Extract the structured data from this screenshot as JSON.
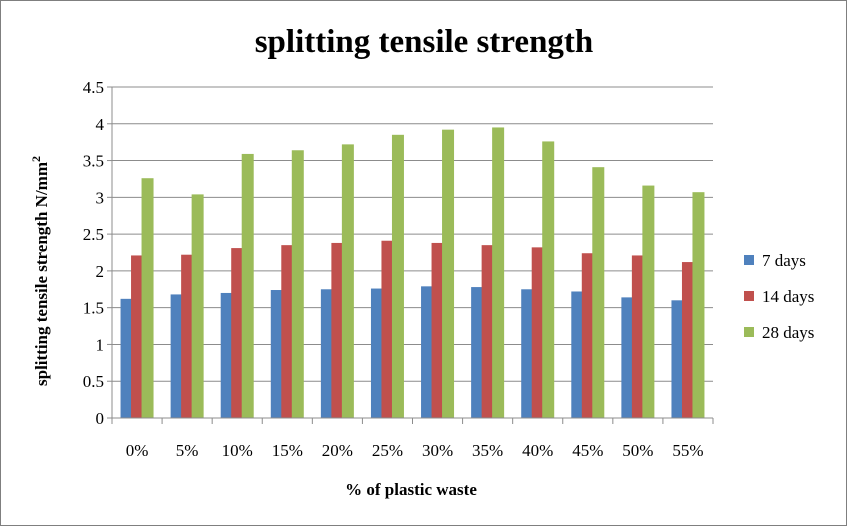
{
  "chart_data": {
    "type": "bar",
    "title": "splitting tensile strength",
    "xlabel": "% of plastic waste",
    "ylabel": "splitting tensile strength N/mm",
    "ylabel_sup": "2",
    "categories": [
      "0%",
      "5%",
      "10%",
      "15%",
      "20%",
      "25%",
      "30%",
      "35%",
      "40%",
      "45%",
      "50%",
      "55%"
    ],
    "ylim": [
      0,
      4.5
    ],
    "yticks": [
      "0",
      "0.5",
      "1",
      "1.5",
      "2",
      "2.5",
      "3",
      "3.5",
      "4",
      "4.5"
    ],
    "grid": true,
    "legend_position": "right",
    "series": [
      {
        "name": "7 days",
        "color": "#4f81bd",
        "values": [
          1.62,
          1.68,
          1.7,
          1.74,
          1.75,
          1.76,
          1.79,
          1.78,
          1.75,
          1.72,
          1.64,
          1.6
        ]
      },
      {
        "name": "14 days",
        "color": "#c0504d",
        "values": [
          2.21,
          2.22,
          2.31,
          2.35,
          2.38,
          2.41,
          2.38,
          2.35,
          2.32,
          2.24,
          2.21,
          2.12
        ]
      },
      {
        "name": "28 days",
        "color": "#9bbb59",
        "values": [
          3.26,
          3.04,
          3.59,
          3.64,
          3.72,
          3.85,
          3.92,
          3.95,
          3.76,
          3.41,
          3.16,
          3.07
        ]
      }
    ]
  }
}
